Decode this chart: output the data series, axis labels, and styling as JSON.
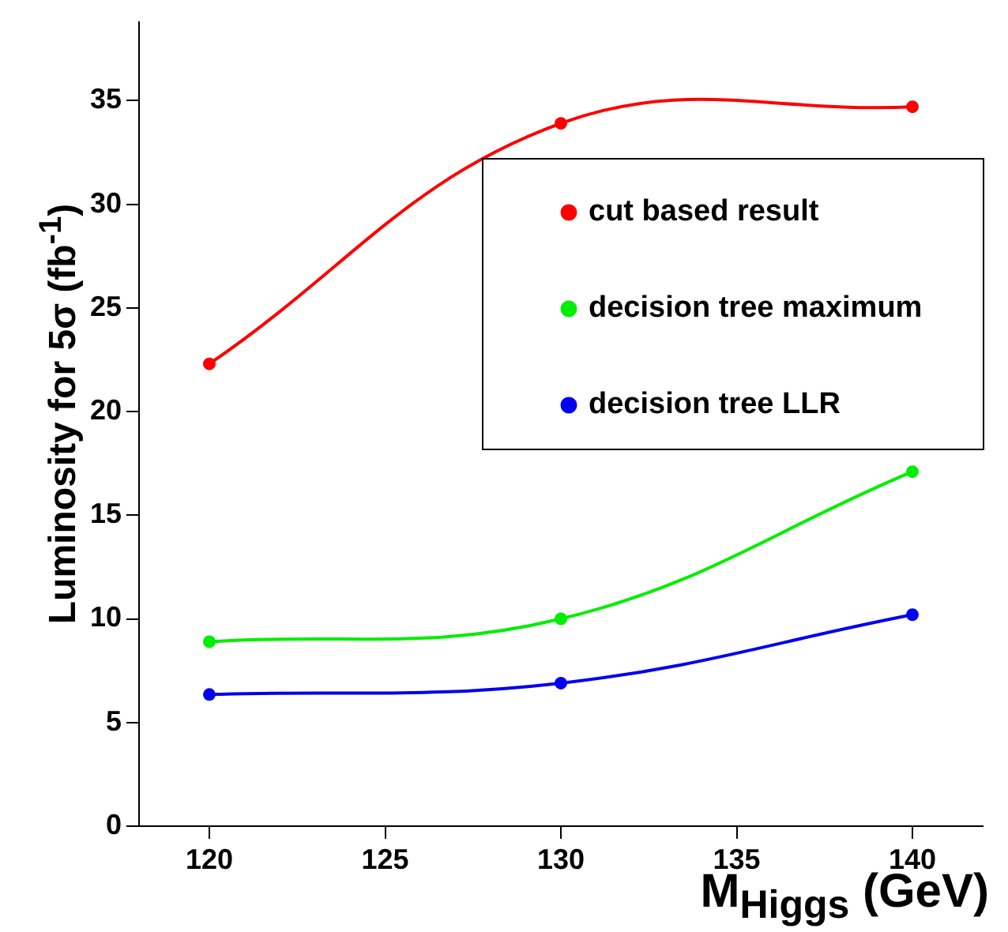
{
  "chart_data": {
    "type": "line",
    "xlabel": "M$_{Higgs}$ (GeV)",
    "ylabel": "Luminosity for 5σ (fb$^{-1}$)",
    "x": [
      120,
      130,
      140
    ],
    "series": [
      {
        "name": "cut based result",
        "color": "#ff0000",
        "values": [
          22.3,
          33.9,
          34.7
        ]
      },
      {
        "name": "decision tree maximum",
        "color": "#00ee00",
        "values": [
          8.9,
          10.0,
          17.1
        ]
      },
      {
        "name": "decision tree LLR",
        "color": "#0000ee",
        "values": [
          6.35,
          6.9,
          10.2
        ]
      }
    ],
    "xlim": [
      118,
      142
    ],
    "xticks": [
      120,
      125,
      130,
      135,
      140
    ],
    "ylim": [
      0,
      38.8
    ],
    "yticks": [
      0,
      5,
      10,
      15,
      20,
      25,
      30,
      35
    ],
    "legend": "top right",
    "marker": "circle",
    "line_style": "solid",
    "grid": false
  }
}
